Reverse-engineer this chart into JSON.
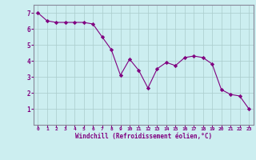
{
  "x": [
    0,
    1,
    2,
    3,
    4,
    5,
    6,
    7,
    8,
    9,
    10,
    11,
    12,
    13,
    14,
    15,
    16,
    17,
    18,
    19,
    20,
    21,
    22,
    23
  ],
  "y": [
    7.0,
    6.5,
    6.4,
    6.4,
    6.4,
    6.4,
    6.3,
    5.5,
    4.7,
    3.1,
    4.1,
    3.4,
    2.3,
    3.5,
    3.9,
    3.7,
    4.2,
    4.3,
    4.2,
    3.8,
    2.2,
    1.9,
    1.8,
    1.0
  ],
  "line_color": "#800080",
  "marker": "D",
  "marker_size": 2.2,
  "background_color": "#cceef0",
  "grid_color": "#aacccc",
  "xlabel": "Windchill (Refroidissement éolien,°C)",
  "xlim": [
    -0.5,
    23.5
  ],
  "ylim": [
    0,
    7.5
  ],
  "xticks": [
    0,
    1,
    2,
    3,
    4,
    5,
    6,
    7,
    8,
    9,
    10,
    11,
    12,
    13,
    14,
    15,
    16,
    17,
    18,
    19,
    20,
    21,
    22,
    23
  ],
  "yticks": [
    1,
    2,
    3,
    4,
    5,
    6,
    7
  ],
  "xlabel_color": "#800080",
  "tick_color": "#800080",
  "axis_color": "#888899"
}
